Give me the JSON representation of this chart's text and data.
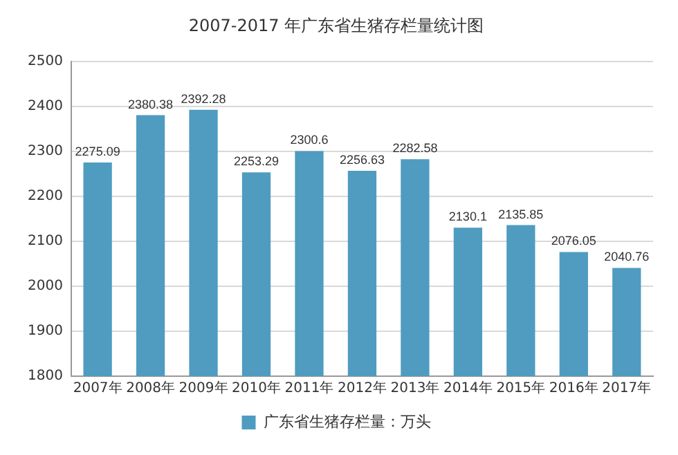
{
  "chart_data": {
    "type": "bar",
    "title": "2007-2017 年广东省生猪存栏量统计图",
    "categories": [
      "2007年",
      "2008年",
      "2009年",
      "2010年",
      "2011年",
      "2012年",
      "2013年",
      "2014年",
      "2015年",
      "2016年",
      "2017年"
    ],
    "series": [
      {
        "name": "广东省生猪存栏量：万头",
        "color": "#4f9cc0",
        "values": [
          2275.09,
          2380.38,
          2392.28,
          2253.29,
          2300.6,
          2256.63,
          2282.58,
          2130.1,
          2135.85,
          2076.05,
          2040.76
        ]
      }
    ],
    "ylim": [
      1800,
      2500
    ],
    "yticks": [
      1800,
      1900,
      2000,
      2100,
      2200,
      2300,
      2400,
      2500
    ],
    "grid": "y",
    "legend": "bottom",
    "data_labels": true
  }
}
